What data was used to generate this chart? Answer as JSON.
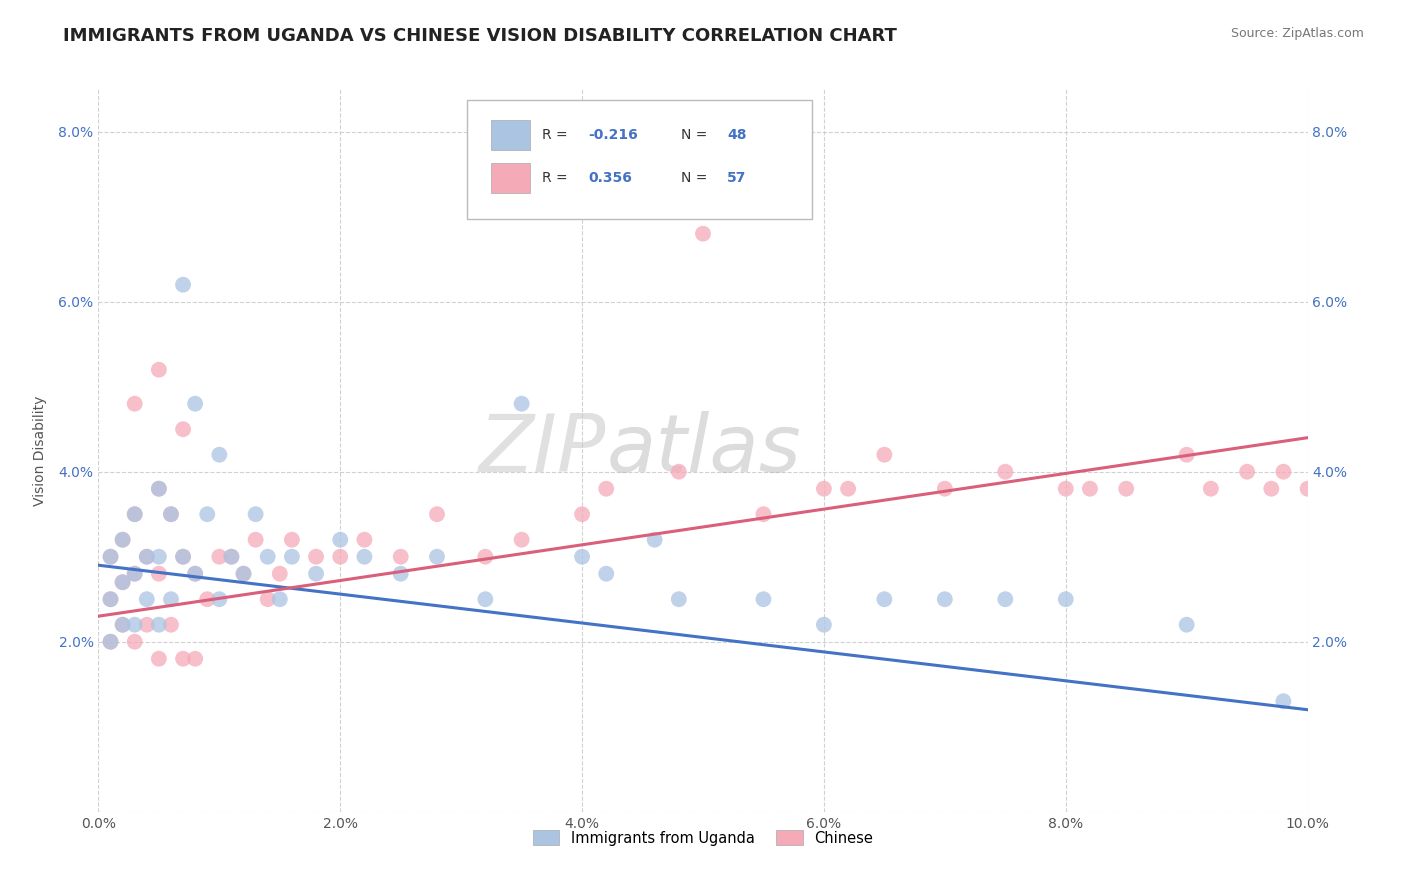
{
  "title": "IMMIGRANTS FROM UGANDA VS CHINESE VISION DISABILITY CORRELATION CHART",
  "source": "Source: ZipAtlas.com",
  "ylabel": "Vision Disability",
  "xlim": [
    0.0,
    0.1
  ],
  "ylim": [
    0.0,
    0.085
  ],
  "xticks": [
    0.0,
    0.02,
    0.04,
    0.06,
    0.08,
    0.1
  ],
  "yticks": [
    0.0,
    0.02,
    0.04,
    0.06,
    0.08
  ],
  "xtick_labels": [
    "0.0%",
    "2.0%",
    "4.0%",
    "6.0%",
    "8.0%",
    "10.0%"
  ],
  "ytick_labels": [
    "",
    "2.0%",
    "4.0%",
    "6.0%",
    "8.0%"
  ],
  "right_ytick_labels": [
    "",
    "2.0%",
    "4.0%",
    "6.0%",
    "8.0%"
  ],
  "legend_labels": [
    "Immigrants from Uganda",
    "Chinese"
  ],
  "R_uganda": -0.216,
  "N_uganda": 48,
  "R_chinese": 0.356,
  "N_chinese": 57,
  "color_uganda": "#aac4e2",
  "color_chinese": "#f5aab8",
  "line_color_uganda": "#4472c4",
  "line_color_chinese": "#d95f7a",
  "watermark_zip": "ZIP",
  "watermark_atlas": "atlas",
  "background_color": "#ffffff",
  "title_fontsize": 13,
  "uganda_x": [
    0.001,
    0.001,
    0.001,
    0.002,
    0.002,
    0.002,
    0.003,
    0.003,
    0.003,
    0.004,
    0.004,
    0.005,
    0.005,
    0.005,
    0.006,
    0.006,
    0.007,
    0.007,
    0.008,
    0.008,
    0.009,
    0.01,
    0.01,
    0.011,
    0.012,
    0.013,
    0.014,
    0.015,
    0.016,
    0.018,
    0.02,
    0.022,
    0.025,
    0.028,
    0.032,
    0.035,
    0.04,
    0.042,
    0.046,
    0.048,
    0.055,
    0.06,
    0.065,
    0.07,
    0.075,
    0.08,
    0.09,
    0.098
  ],
  "uganda_y": [
    0.03,
    0.025,
    0.02,
    0.032,
    0.027,
    0.022,
    0.035,
    0.028,
    0.022,
    0.03,
    0.025,
    0.038,
    0.03,
    0.022,
    0.035,
    0.025,
    0.062,
    0.03,
    0.048,
    0.028,
    0.035,
    0.042,
    0.025,
    0.03,
    0.028,
    0.035,
    0.03,
    0.025,
    0.03,
    0.028,
    0.032,
    0.03,
    0.028,
    0.03,
    0.025,
    0.048,
    0.03,
    0.028,
    0.032,
    0.025,
    0.025,
    0.022,
    0.025,
    0.025,
    0.025,
    0.025,
    0.022,
    0.013
  ],
  "chinese_x": [
    0.001,
    0.001,
    0.001,
    0.002,
    0.002,
    0.002,
    0.003,
    0.003,
    0.003,
    0.004,
    0.004,
    0.005,
    0.005,
    0.005,
    0.006,
    0.006,
    0.007,
    0.007,
    0.008,
    0.008,
    0.009,
    0.01,
    0.011,
    0.012,
    0.013,
    0.014,
    0.015,
    0.016,
    0.018,
    0.02,
    0.022,
    0.025,
    0.028,
    0.032,
    0.035,
    0.04,
    0.042,
    0.048,
    0.05,
    0.055,
    0.06,
    0.062,
    0.065,
    0.07,
    0.075,
    0.08,
    0.082,
    0.085,
    0.09,
    0.092,
    0.095,
    0.097,
    0.098,
    0.1,
    0.003,
    0.005,
    0.007
  ],
  "chinese_y": [
    0.03,
    0.025,
    0.02,
    0.032,
    0.027,
    0.022,
    0.035,
    0.028,
    0.02,
    0.03,
    0.022,
    0.038,
    0.028,
    0.018,
    0.035,
    0.022,
    0.03,
    0.018,
    0.028,
    0.018,
    0.025,
    0.03,
    0.03,
    0.028,
    0.032,
    0.025,
    0.028,
    0.032,
    0.03,
    0.03,
    0.032,
    0.03,
    0.035,
    0.03,
    0.032,
    0.035,
    0.038,
    0.04,
    0.068,
    0.035,
    0.038,
    0.038,
    0.042,
    0.038,
    0.04,
    0.038,
    0.038,
    0.038,
    0.042,
    0.038,
    0.04,
    0.038,
    0.04,
    0.038,
    0.048,
    0.052,
    0.045
  ]
}
